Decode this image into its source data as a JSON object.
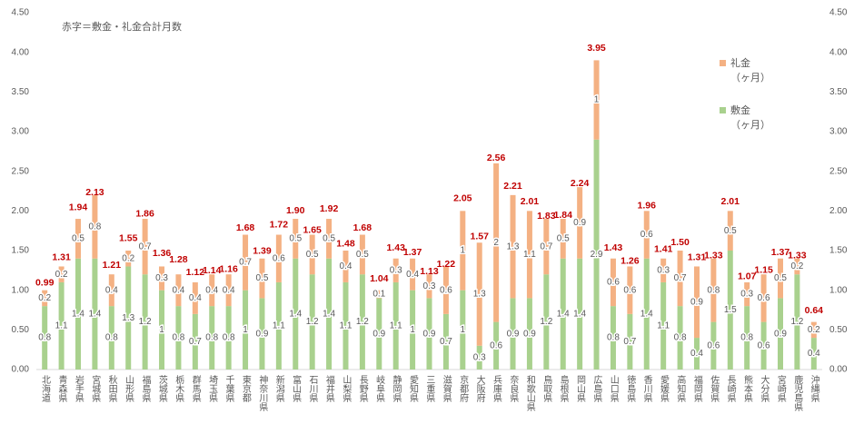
{
  "chart_data": {
    "type": "stacked_bar",
    "annotation": "赤字＝敷金・礼金合計月数",
    "categories": [
      "北海道",
      "青森県",
      "岩手県",
      "宮城県",
      "秋田県",
      "山形県",
      "福島県",
      "茨城県",
      "栃木県",
      "群馬県",
      "埼玉県",
      "千葉県",
      "東京都",
      "神奈川県",
      "新潟県",
      "富山県",
      "石川県",
      "福井県",
      "山梨県",
      "長野県",
      "岐阜県",
      "静岡県",
      "愛知県",
      "三重県",
      "滋賀県",
      "京都府",
      "大阪府",
      "兵庫県",
      "奈良県",
      "和歌山県",
      "鳥取県",
      "島根県",
      "岡山県",
      "広島県",
      "山口県",
      "徳島県",
      "香川県",
      "愛媛県",
      "高知県",
      "福岡県",
      "佐賀県",
      "長崎県",
      "熊本県",
      "大分県",
      "宮崎県",
      "鹿児島県",
      "沖縄県"
    ],
    "series": [
      {
        "name": "敷金\n（ヶ月）",
        "color": "#a9d18e",
        "values": [
          0.8,
          1.1,
          1.4,
          1.4,
          0.8,
          1.3,
          1.2,
          1.0,
          0.8,
          0.7,
          0.8,
          0.8,
          1.0,
          0.9,
          1.1,
          1.4,
          1.2,
          1.4,
          1.1,
          1.2,
          0.9,
          1.1,
          1.0,
          0.9,
          0.7,
          1.0,
          0.3,
          0.6,
          0.9,
          0.9,
          1.2,
          1.4,
          1.4,
          2.9,
          0.8,
          0.7,
          1.4,
          1.1,
          0.8,
          0.4,
          0.6,
          1.5,
          0.8,
          0.6,
          0.9,
          1.2,
          0.4
        ]
      },
      {
        "name": "礼金\n（ヶ月）",
        "color": "#f4b183",
        "values": [
          0.2,
          0.2,
          0.5,
          0.8,
          0.4,
          0.2,
          0.7,
          0.3,
          0.4,
          0.4,
          0.4,
          0.4,
          0.7,
          0.5,
          0.6,
          0.5,
          0.5,
          0.5,
          0.4,
          0.5,
          0.1,
          0.3,
          0.4,
          0.3,
          0.6,
          1.0,
          1.3,
          2.0,
          1.3,
          1.1,
          0.7,
          0.5,
          0.9,
          1.0,
          0.6,
          0.6,
          0.6,
          0.3,
          0.7,
          0.9,
          0.8,
          0.5,
          0.3,
          0.6,
          0.5,
          0.2,
          0.2
        ]
      }
    ],
    "totals": [
      0.99,
      1.31,
      1.94,
      2.13,
      1.21,
      1.55,
      1.86,
      1.36,
      1.28,
      1.12,
      1.14,
      1.16,
      1.68,
      1.39,
      1.72,
      1.9,
      1.65,
      1.92,
      1.48,
      1.68,
      1.04,
      1.43,
      1.37,
      1.13,
      1.22,
      2.05,
      1.57,
      2.56,
      2.21,
      2.01,
      1.83,
      1.84,
      2.24,
      3.95,
      1.43,
      1.26,
      1.96,
      1.41,
      1.5,
      1.31,
      1.33,
      2.01,
      1.07,
      1.15,
      1.37,
      1.33,
      0.64
    ],
    "total_labels": [
      "0.99",
      "1.31",
      "1.94",
      "2.13",
      "1.21",
      "1.55",
      "1.86",
      "1.36",
      "1.28",
      "1.12",
      "1.14",
      "1.16",
      "1.68",
      "1.39",
      "1.72",
      "1.90",
      "1.65",
      "1.92",
      "1.48",
      "1.68",
      "1.04",
      "1.43",
      "1.37",
      "1.13",
      "1.22",
      "2.05",
      "1.57",
      "2.56",
      "2.21",
      "2.01",
      "1.83",
      "1.84",
      "2.24",
      "3.95",
      "1.43",
      "1.26",
      "1.96",
      "1.41",
      "1.50",
      "1.31",
      "1.33",
      "2.01",
      "1.07",
      "1.15",
      "1.37",
      "1.33",
      "0.64"
    ],
    "total_color": "#c00000",
    "ylim": [
      0,
      4.5
    ],
    "yticks": [
      {
        "value": 0,
        "label": "0.00"
      },
      {
        "value": 0.5,
        "label": "0.50"
      },
      {
        "value": 1,
        "label": "1.00"
      },
      {
        "value": 1.5,
        "label": "1.50"
      },
      {
        "value": 2,
        "label": "2.00"
      },
      {
        "value": 2.5,
        "label": "2.50"
      },
      {
        "value": 3,
        "label": "3.00"
      },
      {
        "value": 3.5,
        "label": "3.50"
      },
      {
        "value": 4,
        "label": "4.00"
      },
      {
        "value": 4.5,
        "label": "4.50"
      }
    ],
    "y2lim": [
      0,
      4.5
    ],
    "y2ticks": [
      {
        "value": 0,
        "label": "0.00"
      },
      {
        "value": 0.5,
        "label": "0.50"
      },
      {
        "value": 1,
        "label": "1.00"
      },
      {
        "value": 1.5,
        "label": "1.50"
      },
      {
        "value": 2,
        "label": "2.00"
      },
      {
        "value": 2.5,
        "label": "2.50"
      },
      {
        "value": 3,
        "label": "3.00"
      },
      {
        "value": 3.5,
        "label": "3.50"
      },
      {
        "value": 4,
        "label": "4.00"
      },
      {
        "value": 4.5,
        "label": "4.50"
      }
    ],
    "grid": false,
    "legend": "upper right"
  }
}
